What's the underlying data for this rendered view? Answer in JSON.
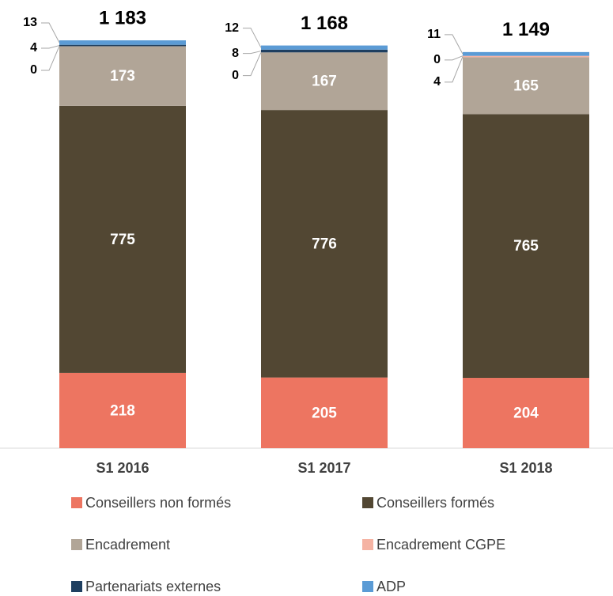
{
  "chart_data": {
    "type": "stacked_bar",
    "categories": [
      "S1 2016",
      "S1 2017",
      "S1 2018"
    ],
    "series": [
      {
        "name": "Conseillers non formés",
        "color": "#ed7561",
        "values": [
          218,
          205,
          204
        ]
      },
      {
        "name": "Conseillers formés",
        "color": "#524733",
        "values": [
          775,
          776,
          765
        ]
      },
      {
        "name": "Encadrement",
        "color": "#b1a597",
        "values": [
          173,
          167,
          165
        ]
      },
      {
        "name": "Encadrement CGPE",
        "color": "#f5b3a3",
        "values": [
          0,
          0,
          4
        ]
      },
      {
        "name": "Partenariats externes",
        "color": "#1f3f60",
        "values": [
          4,
          8,
          0
        ]
      },
      {
        "name": "ADP",
        "color": "#5b9bd5",
        "values": [
          13,
          12,
          11
        ]
      }
    ],
    "totals": {
      "values": [
        1183,
        1168,
        1149
      ],
      "value_labels": [
        "1 183",
        "1 168",
        "1 149"
      ]
    },
    "ylim": [
      0,
      1300
    ]
  }
}
